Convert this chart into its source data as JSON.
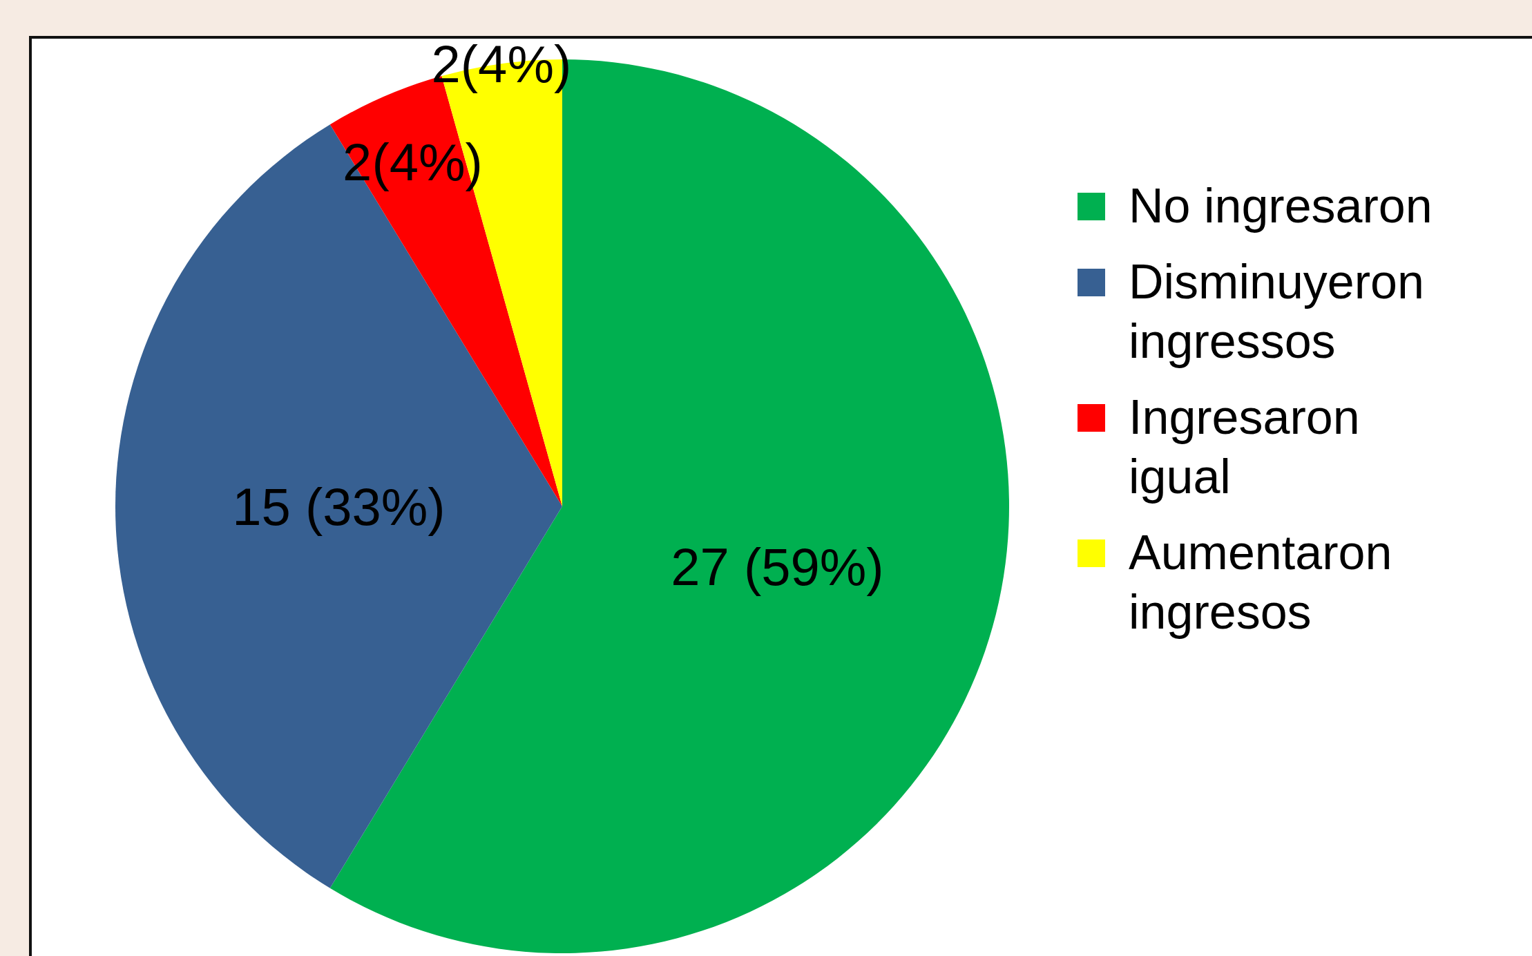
{
  "chart_data": {
    "type": "pie",
    "categories": [
      "No ingresaron",
      "Disminuyeron ingressos",
      "Ingresaron igual",
      "Aumentaron ingresos"
    ],
    "values": [
      27,
      15,
      2,
      2
    ],
    "colors": [
      "#00b050",
      "#376092",
      "#ff0000",
      "#ffff00"
    ],
    "value_labels": [
      "27 (59%)",
      "15 (33%)",
      "2(4%)",
      "2(4%)"
    ],
    "legend": "right"
  }
}
